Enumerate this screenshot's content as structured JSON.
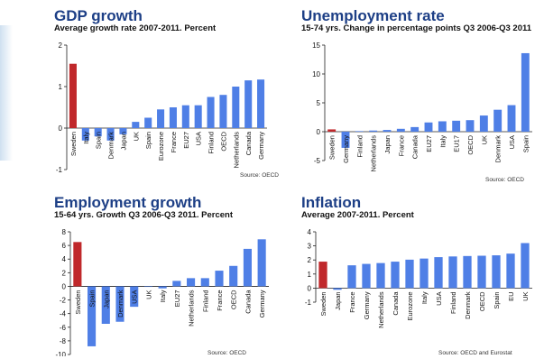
{
  "colors": {
    "highlight": "#c0282b",
    "bar": "#4f7fe6",
    "title": "#1d3f86"
  },
  "chart_data": [
    {
      "type": "bar",
      "title": "GDP growth",
      "subtitle": "Average growth rate 2007-2011. Percent",
      "source": "Source: OECD",
      "categories": [
        "Sweden",
        "Italy",
        "Spain",
        "Denmark",
        "Japan",
        "UK",
        "Spain",
        "Eurozone",
        "France",
        "EU27",
        "USA",
        "Finland",
        "OECD",
        "Netherlands",
        "Canada",
        "Germany"
      ],
      "values": [
        1.55,
        -0.3,
        -0.2,
        -0.3,
        -0.15,
        0.15,
        0.25,
        0.45,
        0.5,
        0.55,
        0.55,
        0.75,
        0.8,
        1.0,
        1.15,
        1.17
      ],
      "highlight_index": 0,
      "ylim": [
        -1,
        2
      ],
      "yticks": [
        -1,
        0,
        1,
        2
      ],
      "grid": false
    },
    {
      "type": "bar",
      "title": "Unemployment rate",
      "subtitle": "15-74 yrs. Change in percentage points Q3 2006-Q3 2011",
      "source": "Source: OECD",
      "categories": [
        "Sweden",
        "Germany",
        "Finland",
        "Netherlands",
        "Japan",
        "France",
        "Canada",
        "EU27",
        "Italy",
        "EU17",
        "OECD",
        "UK",
        "Denmark",
        "USA",
        "Spain"
      ],
      "values": [
        0.4,
        -2.8,
        0.1,
        0.2,
        0.3,
        0.5,
        0.8,
        1.6,
        1.8,
        1.9,
        2.0,
        2.8,
        3.8,
        4.6,
        13.6
      ],
      "highlight_index": 0,
      "ylim": [
        -5,
        15
      ],
      "yticks": [
        -5,
        0,
        5,
        10,
        15
      ],
      "grid": false
    },
    {
      "type": "bar",
      "title": "Employment growth",
      "subtitle": "15-64 yrs. Growth Q3 2006-Q3 2011. Percent",
      "source": "Source: OECD",
      "categories": [
        "Sweden",
        "Spain",
        "Japan",
        "Denmark",
        "USA",
        "UK",
        "Italy",
        "EU27",
        "Netherlands",
        "Finland",
        "France",
        "OECD",
        "Canada",
        "Germany"
      ],
      "values": [
        6.5,
        -8.8,
        -5.5,
        -5.2,
        -3.0,
        0.0,
        -0.3,
        0.8,
        1.2,
        1.2,
        2.3,
        3.0,
        5.5,
        6.9
      ],
      "highlight_index": 0,
      "ylim": [
        -10,
        8
      ],
      "yticks": [
        -10,
        -8,
        -6,
        -4,
        -2,
        0,
        2,
        4,
        6,
        8
      ],
      "grid": false
    },
    {
      "type": "bar",
      "title": "Inflation",
      "subtitle": "Average 2007-2011. Percent",
      "source": "Source: OECD and Eurostat",
      "categories": [
        "Sweden",
        "Japan",
        "France",
        "Germany",
        "Netherlands",
        "Canada",
        "Eurozone",
        "Italy",
        "USA",
        "Finland",
        "Denmark",
        "OECD",
        "Spain",
        "EU",
        "UK"
      ],
      "values": [
        1.88,
        -0.12,
        1.62,
        1.72,
        1.78,
        1.88,
        2.02,
        2.1,
        2.2,
        2.25,
        2.28,
        2.3,
        2.33,
        2.45,
        3.2
      ],
      "highlight_index": 0,
      "ylim": [
        -1,
        4
      ],
      "yticks": [
        -1,
        0,
        1,
        2,
        3,
        4
      ],
      "grid": false
    }
  ]
}
